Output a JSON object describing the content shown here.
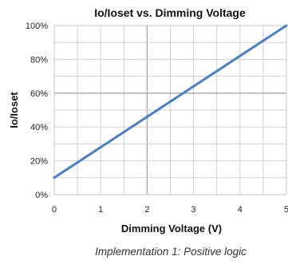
{
  "colors": {
    "series": "#4a7fc1"
  },
  "chart_data": {
    "type": "line",
    "title": "Io/Ioset vs. Dimming Voltage",
    "xlabel": "Dimming Voltage (V)",
    "ylabel": "Io/Ioset",
    "xlim": [
      0,
      5
    ],
    "ylim": [
      0,
      100
    ],
    "x_ticks": [
      0,
      1,
      2,
      3,
      4,
      5
    ],
    "x_tick_labels": [
      "0",
      "1",
      "2",
      "3",
      "4",
      "5"
    ],
    "y_ticks": [
      0,
      20,
      40,
      60,
      80,
      100
    ],
    "y_tick_labels": [
      "0%",
      "20%",
      "40%",
      "60%",
      "80%",
      "100%"
    ],
    "grid": true,
    "series": [
      {
        "x": [
          0,
          5
        ],
        "y": [
          10,
          100
        ]
      }
    ]
  },
  "caption": "Implementation 1: Positive logic"
}
